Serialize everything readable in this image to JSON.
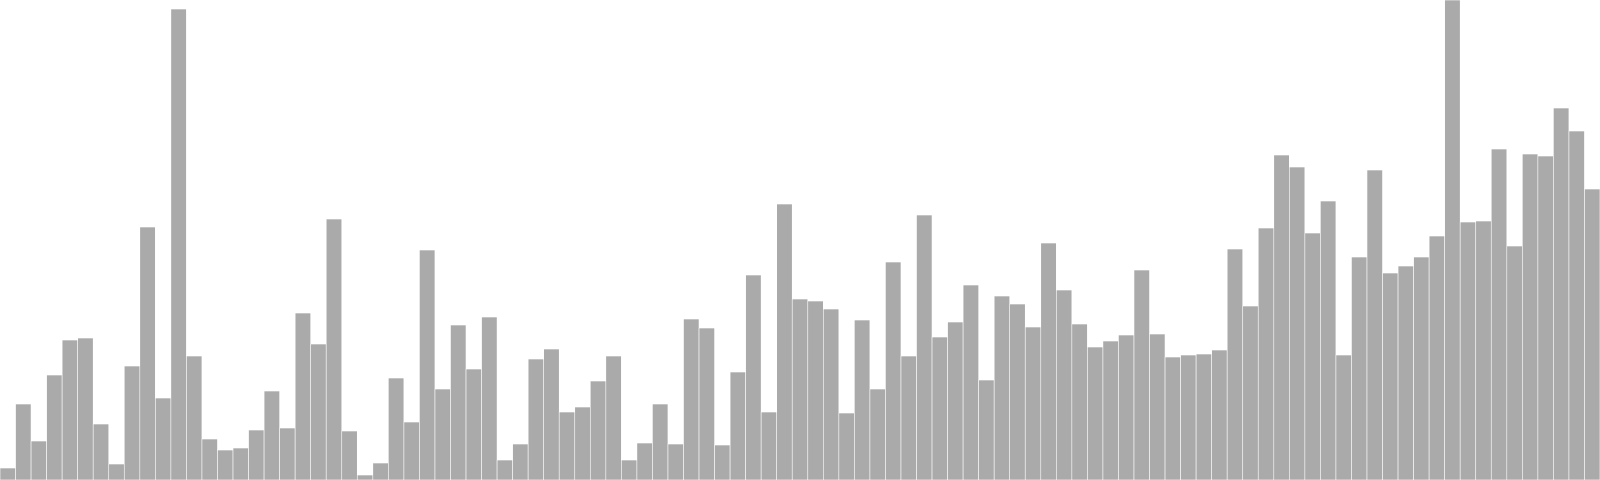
{
  "chart_data": {
    "type": "bar",
    "title": "",
    "xlabel": "",
    "ylabel": "",
    "grid": false,
    "legend": "none",
    "bar_color": "#aaaaaa",
    "bar_edge_color": "#ffffff",
    "ylim": [
      0,
      480
    ],
    "values": [
      12,
      76,
      39,
      105,
      140,
      142,
      56,
      16,
      114,
      253,
      82,
      471,
      124,
      41,
      30,
      32,
      50,
      89,
      52,
      167,
      136,
      261,
      49,
      5,
      17,
      102,
      58,
      230,
      91,
      155,
      111,
      163,
      20,
      36,
      121,
      131,
      68,
      73,
      99,
      124,
      20,
      37,
      76,
      36,
      161,
      152,
      35,
      108,
      205,
      68,
      276,
      181,
      179,
      171,
      67,
      160,
      91,
      218,
      124,
      265,
      143,
      158,
      195,
      100,
      184,
      176,
      153,
      237,
      190,
      156,
      133,
      139,
      145,
      210,
      146,
      123,
      125,
      126,
      130,
      231,
      174,
      252,
      325,
      313,
      247,
      279,
      125,
      223,
      310,
      207,
      214,
      223,
      244,
      480,
      258,
      259,
      331,
      234,
      326,
      324,
      372,
      349,
      291
    ]
  }
}
